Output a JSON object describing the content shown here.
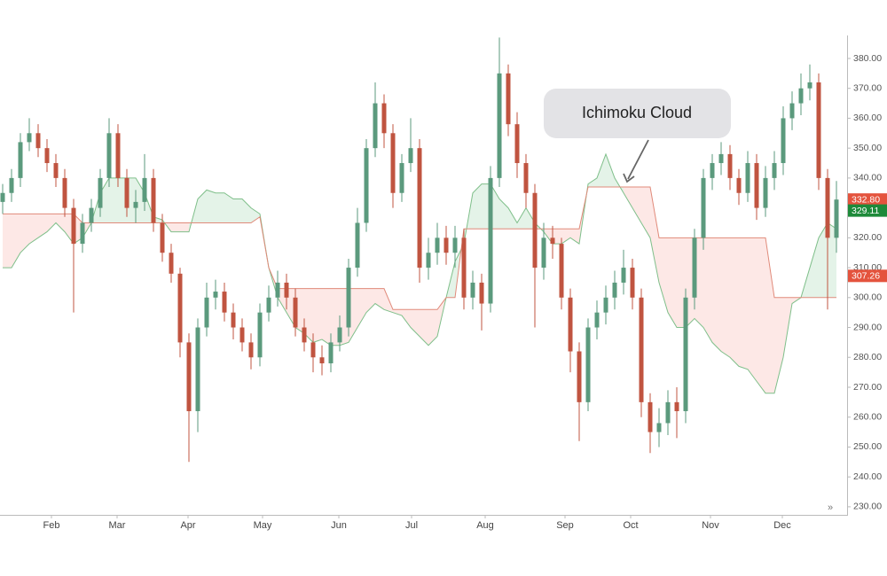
{
  "chart_data": {
    "type": "candlestick",
    "x": [
      0,
      1,
      2,
      3,
      4,
      5,
      6,
      7,
      8,
      9,
      10,
      11,
      12,
      13,
      14,
      15,
      16,
      17,
      18,
      19,
      20,
      21,
      22,
      23,
      24,
      25,
      26,
      27,
      28,
      29,
      30,
      31,
      32,
      33,
      34,
      35,
      36,
      37,
      38,
      39,
      40,
      41,
      42,
      43,
      44,
      45,
      46,
      47,
      48,
      49,
      50,
      51,
      52,
      53,
      54,
      55,
      56,
      57,
      58,
      59,
      60,
      61,
      62,
      63,
      64,
      65,
      66,
      67,
      68,
      69,
      70,
      71,
      72,
      73,
      74,
      75,
      76,
      77,
      78,
      79,
      80,
      81,
      82,
      83,
      84,
      85,
      86,
      87,
      88,
      89,
      90,
      91,
      92,
      93,
      94
    ],
    "open": [
      332,
      335,
      340,
      352,
      355,
      350,
      345,
      340,
      330,
      318,
      325,
      330,
      340,
      355,
      340,
      330,
      332,
      340,
      325,
      315,
      308,
      285,
      262,
      290,
      300,
      302,
      295,
      290,
      285,
      280,
      295,
      300,
      305,
      300,
      290,
      285,
      280,
      278,
      285,
      290,
      310,
      325,
      350,
      365,
      355,
      335,
      345,
      350,
      310,
      315,
      320,
      315,
      320,
      300,
      305,
      298,
      340,
      375,
      358,
      345,
      335,
      310,
      320,
      318,
      300,
      282,
      265,
      290,
      295,
      300,
      305,
      310,
      300,
      265,
      255,
      258,
      265,
      262,
      300,
      320,
      340,
      345,
      348,
      340,
      335,
      345,
      330,
      340,
      345,
      360,
      365,
      370,
      372,
      340,
      320
    ],
    "high": [
      338,
      343,
      355,
      360,
      358,
      353,
      348,
      343,
      333,
      328,
      333,
      343,
      360,
      358,
      343,
      336,
      348,
      343,
      328,
      318,
      310,
      288,
      293,
      305,
      306,
      305,
      298,
      293,
      288,
      298,
      304,
      309,
      308,
      303,
      293,
      288,
      284,
      288,
      294,
      313,
      330,
      353,
      372,
      368,
      358,
      348,
      360,
      353,
      320,
      325,
      324,
      324,
      323,
      309,
      308,
      344,
      387,
      378,
      362,
      348,
      338,
      325,
      324,
      320,
      303,
      285,
      293,
      299,
      304,
      309,
      316,
      313,
      303,
      268,
      263,
      269,
      270,
      303,
      323,
      343,
      348,
      352,
      351,
      343,
      349,
      348,
      344,
      349,
      364,
      369,
      375,
      378,
      375,
      343,
      339
    ],
    "low": [
      328,
      332,
      337,
      349,
      347,
      342,
      337,
      327,
      295,
      315,
      322,
      327,
      337,
      337,
      327,
      325,
      329,
      322,
      312,
      305,
      280,
      245,
      255,
      287,
      296,
      292,
      286,
      282,
      276,
      277,
      292,
      297,
      296,
      287,
      282,
      275,
      274,
      275,
      282,
      287,
      307,
      322,
      347,
      350,
      330,
      332,
      342,
      305,
      306,
      311,
      311,
      310,
      296,
      296,
      289,
      295,
      337,
      354,
      340,
      330,
      290,
      306,
      313,
      296,
      275,
      252,
      262,
      286,
      291,
      296,
      301,
      296,
      260,
      248,
      250,
      254,
      253,
      258,
      296,
      316,
      336,
      341,
      336,
      331,
      332,
      326,
      327,
      336,
      341,
      356,
      361,
      366,
      336,
      296,
      315
    ],
    "close": [
      335,
      340,
      352,
      355,
      350,
      345,
      340,
      330,
      318,
      325,
      330,
      340,
      355,
      340,
      330,
      332,
      340,
      325,
      315,
      308,
      285,
      262,
      290,
      300,
      302,
      295,
      290,
      285,
      280,
      295,
      300,
      305,
      300,
      290,
      285,
      280,
      278,
      285,
      290,
      310,
      325,
      350,
      365,
      355,
      335,
      345,
      350,
      310,
      315,
      320,
      315,
      320,
      300,
      305,
      298,
      340,
      375,
      358,
      345,
      335,
      310,
      320,
      318,
      300,
      282,
      265,
      290,
      295,
      300,
      305,
      310,
      300,
      265,
      255,
      258,
      265,
      262,
      300,
      320,
      340,
      345,
      348,
      340,
      335,
      345,
      330,
      340,
      345,
      360,
      365,
      370,
      372,
      340,
      320,
      332.8
    ],
    "up_color": "#5b9a7d",
    "down_color": "#c05440",
    "span_a": [
      310,
      310,
      315,
      318,
      320,
      322,
      325,
      322,
      318,
      320,
      325,
      335,
      340,
      340,
      340,
      340,
      335,
      327,
      326,
      322,
      322,
      322,
      333,
      336,
      335,
      335,
      333,
      333,
      330,
      328,
      310,
      300,
      295,
      290,
      288,
      285,
      286,
      284,
      284,
      285,
      290,
      295,
      298,
      296,
      295,
      294,
      290,
      287,
      284,
      287,
      300,
      312,
      318,
      335,
      338,
      338,
      333,
      330,
      325,
      330,
      325,
      322,
      318,
      318,
      320,
      318,
      338,
      340,
      348,
      340,
      335,
      330,
      325,
      320,
      305,
      295,
      290,
      290,
      293,
      290,
      285,
      282,
      280,
      277,
      276,
      272,
      268,
      268,
      280,
      298,
      300,
      310,
      320,
      325,
      323
    ],
    "span_b": [
      328,
      328,
      328,
      328,
      328,
      328,
      328,
      328,
      328,
      325,
      325,
      325,
      325,
      325,
      325,
      325,
      325,
      325,
      325,
      325,
      325,
      325,
      325,
      325,
      325,
      325,
      325,
      325,
      325,
      327,
      310,
      303,
      303,
      303,
      303,
      303,
      303,
      303,
      303,
      303,
      303,
      303,
      303,
      303,
      296,
      296,
      296,
      296,
      296,
      296,
      300,
      300,
      323,
      323,
      323,
      323,
      323,
      323,
      323,
      323,
      323,
      323,
      323,
      323,
      323,
      323,
      337,
      337,
      337,
      337,
      337,
      337,
      337,
      337,
      320,
      320,
      320,
      320,
      320,
      320,
      320,
      320,
      320,
      320,
      320,
      320,
      320,
      300,
      300,
      300,
      300,
      300,
      300,
      300,
      300
    ],
    "span_a_color": "#7fbf8a",
    "span_b_color": "#e08a7a",
    "cloud_up_color": "rgba(90,180,110,0.16)",
    "cloud_down_color": "rgba(240,90,80,0.14)",
    "xlim": [
      -0.3,
      95.2
    ],
    "xticks": [
      {
        "value": 5.5,
        "label": "Feb"
      },
      {
        "value": 12.9,
        "label": "Mar"
      },
      {
        "value": 20.9,
        "label": "Apr"
      },
      {
        "value": 29.3,
        "label": "May"
      },
      {
        "value": 37.9,
        "label": "Jun"
      },
      {
        "value": 46.1,
        "label": "Jul"
      },
      {
        "value": 54.4,
        "label": "Aug"
      },
      {
        "value": 63.4,
        "label": "Sep"
      },
      {
        "value": 70.8,
        "label": "Oct"
      },
      {
        "value": 79.8,
        "label": "Nov"
      },
      {
        "value": 87.9,
        "label": "Dec"
      }
    ],
    "ylim": [
      227.6,
      387.7
    ],
    "yticks": [
      {
        "value": 230,
        "label": "230.00"
      },
      {
        "value": 240,
        "label": "240.00"
      },
      {
        "value": 250,
        "label": "250.00"
      },
      {
        "value": 260,
        "label": "260.00"
      },
      {
        "value": 270,
        "label": "270.00"
      },
      {
        "value": 280,
        "label": "280.00"
      },
      {
        "value": 290,
        "label": "290.00"
      },
      {
        "value": 300,
        "label": "300.00"
      },
      {
        "value": 310,
        "label": "310.00"
      },
      {
        "value": 320,
        "label": "320.00"
      },
      {
        "value": 330,
        "label": "330.00"
      },
      {
        "value": 340,
        "label": "340.00"
      },
      {
        "value": 350,
        "label": "350.00"
      },
      {
        "value": 360,
        "label": "360.00"
      },
      {
        "value": 370,
        "label": "370.00"
      },
      {
        "value": 380,
        "label": "380.00"
      }
    ],
    "price_tags": [
      {
        "value": 332.8,
        "label": "332.80",
        "color": "#e4533d"
      },
      {
        "value": 329.11,
        "label": "329.11",
        "color": "#1d8a3a"
      },
      {
        "value": 307.26,
        "label": "307.26",
        "color": "#e4533d"
      }
    ],
    "annotation": "Ichimoku Cloud"
  }
}
